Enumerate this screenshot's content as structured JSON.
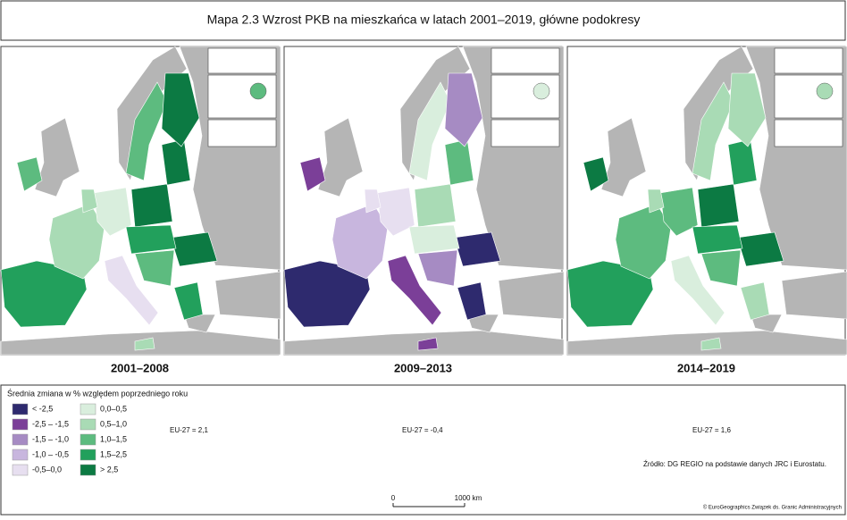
{
  "title": "Mapa 2.3 Wzrost PKB na mieszkańca w latach 2001–2019, główne podokresy",
  "panels": [
    {
      "label": "2001–2008",
      "eu_average": "EU-27 = 2,1"
    },
    {
      "label": "2009–2013",
      "eu_average": "EU-27 = -0,4"
    },
    {
      "label": "2014–2019",
      "eu_average": "EU-27 = 1,6"
    }
  ],
  "legend": {
    "title": "Średnia zmiana w % względem poprzedniego roku",
    "items": [
      {
        "label": "< -2,5",
        "color": "#2e2a6e"
      },
      {
        "label": "-2,5 – -1,5",
        "color": "#7b3f98"
      },
      {
        "label": "-1,5 – -1,0",
        "color": "#a68bc3"
      },
      {
        "label": "-1,0 – -0,5",
        "color": "#c8b6de"
      },
      {
        "label": "-0,5–0,0",
        "color": "#e7dff0"
      },
      {
        "label": "0,0–0,5",
        "color": "#d9eedd"
      },
      {
        "label": "0,5–1,0",
        "color": "#a9dbb5"
      },
      {
        "label": "1,0–1,5",
        "color": "#5dbb7f"
      },
      {
        "label": "1,5–2,5",
        "color": "#22a05c"
      },
      {
        "label": "> 2,5",
        "color": "#0c7a43"
      }
    ]
  },
  "source": "Źródło: DG REGIO na podstawie danych JRC i Eurostatu.",
  "scale": {
    "start": "0",
    "end": "1000 km"
  },
  "copyright": "© EuroGeographics Związek ds. Granic Administracyjnych"
}
